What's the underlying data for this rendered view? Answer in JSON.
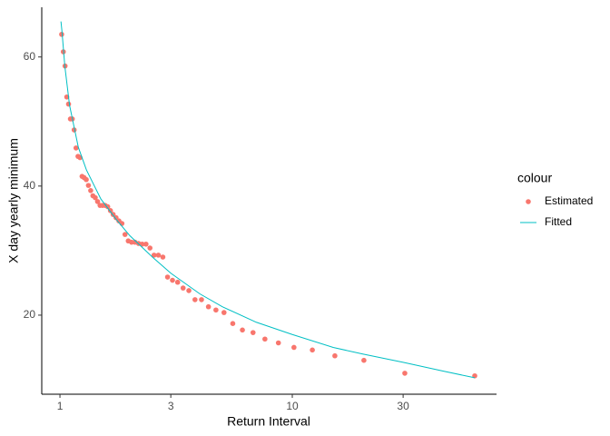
{
  "chart_data": {
    "type": "scatter",
    "x_label": "Return Interval",
    "y_label": "X day yearly minimum",
    "legend_title": "colour",
    "legend_position": "right",
    "x_scale": "log",
    "xlim": [
      0.835,
      75.7
    ],
    "xticks": [
      1,
      3,
      10,
      30
    ],
    "ylim": [
      7.75,
      67.7
    ],
    "yticks": [
      20,
      40,
      60
    ],
    "grid": false,
    "series": [
      {
        "name": "Estimated",
        "color": "#F8766D",
        "mode": "points",
        "x": [
          1.017,
          1.034,
          1.052,
          1.07,
          1.089,
          1.109,
          1.13,
          1.151,
          1.173,
          1.196,
          1.22,
          1.245,
          1.271,
          1.298,
          1.326,
          1.356,
          1.386,
          1.419,
          1.452,
          1.488,
          1.525,
          1.564,
          1.605,
          1.649,
          1.694,
          1.743,
          1.794,
          1.848,
          1.906,
          1.968,
          2.033,
          2.103,
          2.179,
          2.259,
          2.346,
          2.44,
          2.542,
          2.652,
          2.773,
          2.905,
          3.05,
          3.211,
          3.389,
          3.588,
          3.813,
          4.067,
          4.357,
          4.692,
          5.083,
          5.545,
          6.1,
          6.778,
          7.625,
          8.714,
          10.167,
          12.2,
          15.25,
          20.333,
          30.5,
          61
        ],
        "values": [
          63.5,
          60.8,
          58.6,
          53.8,
          52.7,
          50.4,
          50.4,
          48.7,
          45.9,
          44.6,
          44.4,
          41.5,
          41.3,
          41.0,
          40.1,
          39.3,
          38.5,
          38.2,
          37.6,
          37.0,
          37.0,
          37.0,
          36.8,
          36.2,
          35.6,
          35.1,
          34.6,
          34.2,
          32.5,
          31.5,
          31.3,
          31.3,
          31.1,
          31.0,
          31.0,
          30.4,
          29.3,
          29.3,
          29.0,
          25.9,
          25.4,
          25.1,
          24.2,
          23.8,
          22.4,
          22.4,
          21.3,
          20.8,
          20.4,
          18.7,
          17.7,
          17.3,
          16.3,
          15.7,
          15.0,
          14.6,
          13.7,
          13.0,
          11.0,
          10.6
        ]
      },
      {
        "name": "Fitted",
        "color": "#00BFC4",
        "mode": "line",
        "x": [
          1.01,
          1.02,
          1.05,
          1.1,
          1.2,
          1.3,
          1.5,
          1.75,
          2,
          2.5,
          3,
          4,
          5,
          7,
          10,
          15,
          20,
          30,
          45,
          61
        ],
        "values": [
          65.5,
          64,
          58.5,
          52.5,
          46,
          42.5,
          38,
          34.8,
          32.3,
          29,
          26.5,
          23.3,
          21.3,
          18.9,
          17,
          15,
          14,
          12.7,
          11.3,
          10.3
        ]
      }
    ]
  }
}
